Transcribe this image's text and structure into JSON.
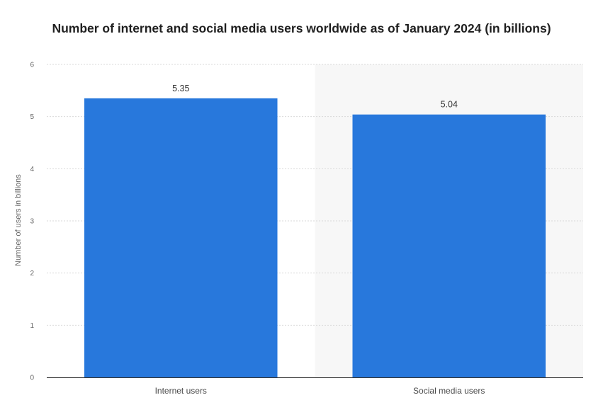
{
  "chart_data": {
    "type": "bar",
    "title": "Number of internet and social media users worldwide as of January 2024 (in billions)",
    "xlabel": "",
    "ylabel": "Number of users in billions",
    "categories": [
      "Internet users",
      "Social media users"
    ],
    "values": [
      5.35,
      5.04
    ],
    "value_labels": [
      "5.35",
      "5.04"
    ],
    "ylim": [
      0,
      6
    ],
    "yticks": [
      "0",
      "1",
      "2",
      "3",
      "4",
      "5",
      "6"
    ],
    "grid": true,
    "bar_color": "#2878dc",
    "band_color": "#f7f7f7"
  }
}
